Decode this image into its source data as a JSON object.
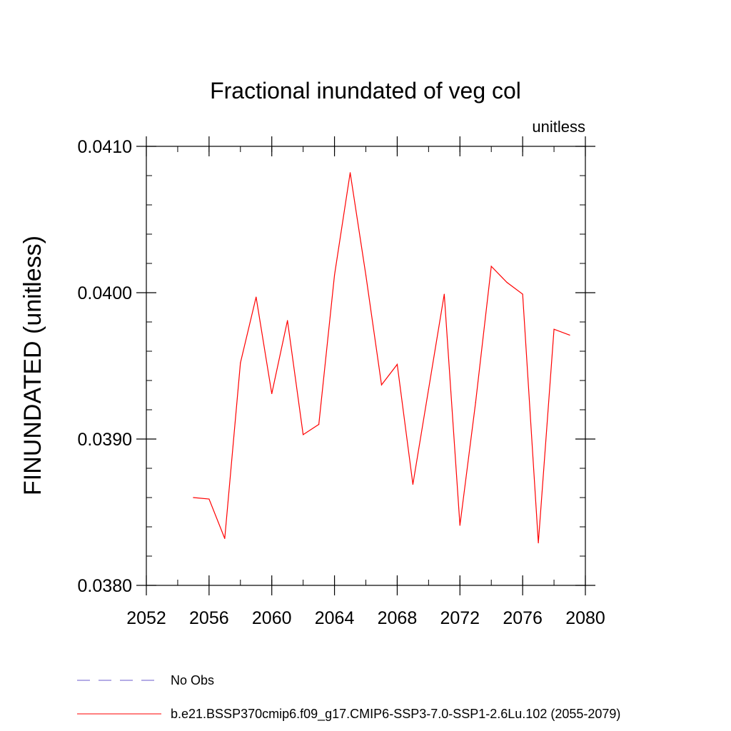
{
  "chart_data": {
    "type": "line",
    "title": "Fractional inundated of veg col",
    "subtitle": "unitless",
    "ylabel": "FINUNDATED  (unitless)",
    "xlabel": "",
    "xlim": [
      2052,
      2080
    ],
    "ylim": [
      0.038,
      0.041
    ],
    "x_ticks": [
      2052,
      2056,
      2060,
      2064,
      2068,
      2072,
      2076,
      2080
    ],
    "x_tick_labels": [
      "2052",
      "2056",
      "2060",
      "2064",
      "2068",
      "2072",
      "2076",
      "2080"
    ],
    "y_ticks": [
      0.038,
      0.039,
      0.04,
      0.041
    ],
    "y_tick_labels": [
      "0.0380",
      "0.0390",
      "0.0400",
      "0.0410"
    ],
    "y_minor_step": 0.0002,
    "x_minor_step": 2,
    "grid": false,
    "series": [
      {
        "name": "b.e21.BSSP370cmip6.f09_g17.CMIP6-SSP3-7.0-SSP1-2.6Lu.102 (2055-2079)",
        "color": "#ff0000",
        "x": [
          2055,
          2056,
          2057,
          2058,
          2059,
          2060,
          2061,
          2062,
          2063,
          2064,
          2065,
          2066,
          2067,
          2068,
          2069,
          2070,
          2071,
          2072,
          2073,
          2074,
          2075,
          2076,
          2077,
          2078,
          2079
        ],
        "y": [
          0.0386,
          0.03859,
          0.03832,
          0.03952,
          0.03997,
          0.03931,
          0.03981,
          0.03903,
          0.0391,
          0.04012,
          0.04082,
          0.04012,
          0.03937,
          0.03951,
          0.03869,
          0.03934,
          0.03999,
          0.03841,
          0.03925,
          0.04018,
          0.04007,
          0.03999,
          0.03829,
          0.03975,
          0.03971
        ]
      }
    ],
    "legend": {
      "placement": "bottom-left",
      "entries": [
        {
          "label": "No Obs",
          "color": "#6a5acd",
          "style": "dashed"
        },
        {
          "label": "b.e21.BSSP370cmip6.f09_g17.CMIP6-SSP3-7.0-SSP1-2.6Lu.102 (2055-2079)",
          "color": "#ff0000",
          "style": "solid"
        }
      ]
    }
  }
}
